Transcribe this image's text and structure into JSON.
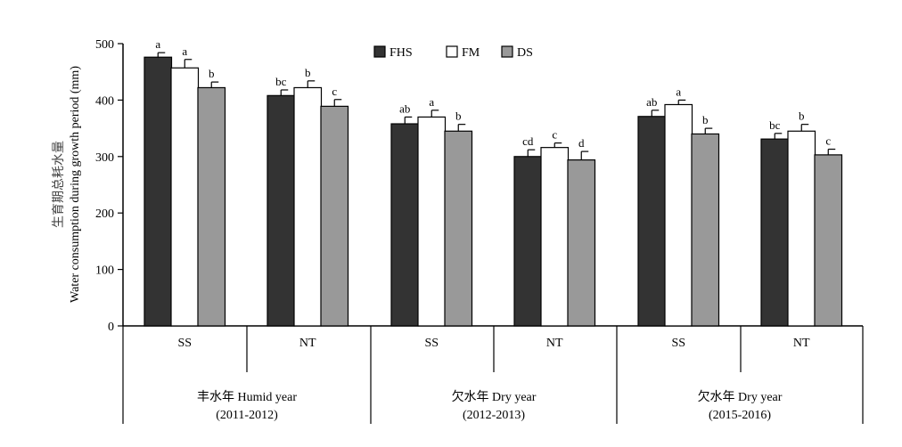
{
  "chart_data": {
    "type": "bar",
    "ylabel_cn": "生育期总耗水量",
    "ylabel_en": "Water consumption during growth period (mm)",
    "ylim": [
      0,
      500
    ],
    "yticks": [
      0,
      100,
      200,
      300,
      400,
      500
    ],
    "legend_position": "top-center",
    "series": [
      {
        "name": "FHS",
        "color": "#333333"
      },
      {
        "name": "FM",
        "color": "#ffffff"
      },
      {
        "name": "DS",
        "color": "#999999"
      }
    ],
    "groups": [
      {
        "label_line1": "丰水年 Humid year",
        "label_line2": "(2011-2012)",
        "clusters": [
          {
            "label": "SS",
            "bars": [
              {
                "series": "FHS",
                "value": 476,
                "error": 8,
                "sig": "a"
              },
              {
                "series": "FM",
                "value": 457,
                "error": 15,
                "sig": "a"
              },
              {
                "series": "DS",
                "value": 422,
                "error": 10,
                "sig": "b"
              }
            ]
          },
          {
            "label": "NT",
            "bars": [
              {
                "series": "FHS",
                "value": 408,
                "error": 10,
                "sig": "bc"
              },
              {
                "series": "FM",
                "value": 422,
                "error": 12,
                "sig": "b"
              },
              {
                "series": "DS",
                "value": 389,
                "error": 12,
                "sig": "c"
              }
            ]
          }
        ]
      },
      {
        "label_line1": "欠水年 Dry year",
        "label_line2": "(2012-2013)",
        "clusters": [
          {
            "label": "SS",
            "bars": [
              {
                "series": "FHS",
                "value": 358,
                "error": 12,
                "sig": "ab"
              },
              {
                "series": "FM",
                "value": 370,
                "error": 12,
                "sig": "a"
              },
              {
                "series": "DS",
                "value": 345,
                "error": 12,
                "sig": "b"
              }
            ]
          },
          {
            "label": "NT",
            "bars": [
              {
                "series": "FHS",
                "value": 300,
                "error": 12,
                "sig": "cd"
              },
              {
                "series": "FM",
                "value": 316,
                "error": 8,
                "sig": "c"
              },
              {
                "series": "DS",
                "value": 294,
                "error": 15,
                "sig": "d"
              }
            ]
          }
        ]
      },
      {
        "label_line1": "欠水年 Dry year",
        "label_line2": "(2015-2016)",
        "clusters": [
          {
            "label": "SS",
            "bars": [
              {
                "series": "FHS",
                "value": 371,
                "error": 11,
                "sig": "ab"
              },
              {
                "series": "FM",
                "value": 392,
                "error": 8,
                "sig": "a"
              },
              {
                "series": "DS",
                "value": 340,
                "error": 10,
                "sig": "b"
              }
            ]
          },
          {
            "label": "NT",
            "bars": [
              {
                "series": "FHS",
                "value": 331,
                "error": 10,
                "sig": "bc"
              },
              {
                "series": "FM",
                "value": 345,
                "error": 12,
                "sig": "b"
              },
              {
                "series": "DS",
                "value": 303,
                "error": 10,
                "sig": "c"
              }
            ]
          }
        ]
      }
    ]
  }
}
